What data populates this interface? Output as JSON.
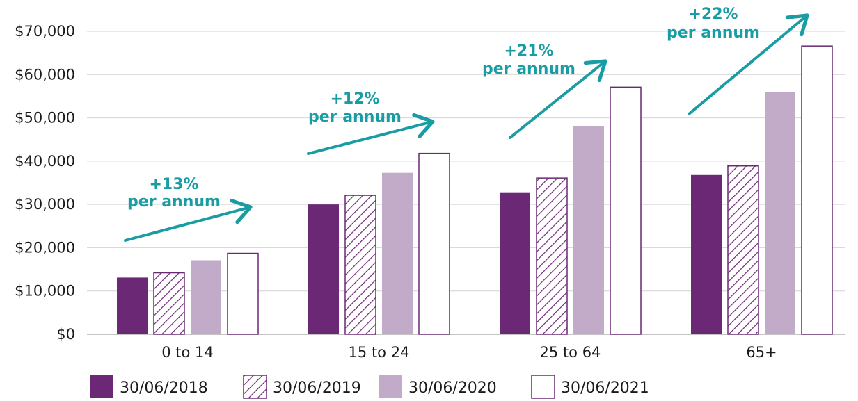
{
  "chart_data": {
    "type": "bar",
    "title": "",
    "xlabel": "",
    "ylabel": "",
    "categories": [
      "0 to 14",
      "15 to 24",
      "25 to 64",
      "65+"
    ],
    "ylim": [
      0,
      70000
    ],
    "yticks": [
      0,
      10000,
      20000,
      30000,
      40000,
      50000,
      60000,
      70000
    ],
    "ytick_labels": [
      "$0",
      "$10,000",
      "$20,000",
      "$30,000",
      "$40,000",
      "$50,000",
      "$60,000",
      "$70,000"
    ],
    "grid": true,
    "legend_position": "bottom",
    "series": [
      {
        "name": "30/06/2018",
        "values": [
          13100,
          30000,
          32800,
          36800
        ],
        "color": "#6b2874",
        "fill": "solid"
      },
      {
        "name": "30/06/2019",
        "values": [
          14200,
          32100,
          36100,
          38900
        ],
        "color": "#6b2874",
        "fill": "hatch"
      },
      {
        "name": "30/06/2020",
        "values": [
          17100,
          37300,
          48100,
          55900
        ],
        "color": "#c1abc8",
        "fill": "solid"
      },
      {
        "name": "30/06/2021",
        "values": [
          18700,
          41800,
          57100,
          66600
        ],
        "color": "#6b2874",
        "fill": "outline"
      }
    ],
    "annotations": [
      {
        "category": "0 to 14",
        "line1": "+13%",
        "line2": "per annum"
      },
      {
        "category": "15 to 24",
        "line1": "+12%",
        "line2": "per annum"
      },
      {
        "category": "25 to 64",
        "line1": "+21%",
        "line2": "per annum"
      },
      {
        "category": "65+",
        "line1": "+22%",
        "line2": "per annum"
      }
    ],
    "annotation_color": "#1a9ca4"
  }
}
